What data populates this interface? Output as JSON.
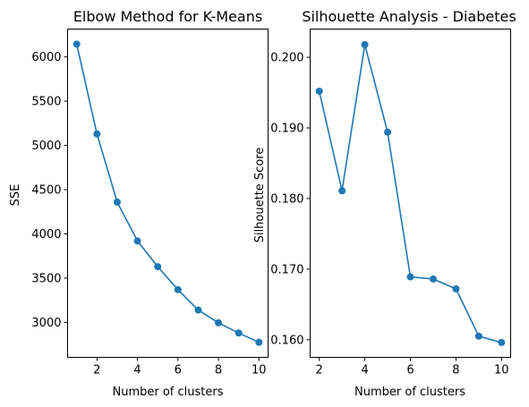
{
  "chart_data": [
    {
      "type": "line",
      "title": "Elbow Method for K-Means",
      "xlabel": "Number of clusters",
      "ylabel": "SSE",
      "x": [
        1,
        2,
        3,
        4,
        5,
        6,
        7,
        8,
        9,
        10
      ],
      "series": [
        {
          "values": [
            6145,
            5130,
            4360,
            3920,
            3630,
            3370,
            3140,
            2995,
            2880,
            2775
          ]
        }
      ],
      "xlim": [
        0.55,
        10.45
      ],
      "ylim": [
        2605,
        6315
      ],
      "xticks": [
        2,
        4,
        6,
        8,
        10
      ],
      "yticks": [
        3000,
        3500,
        4000,
        4500,
        5000,
        5500,
        6000
      ],
      "xtick_labels": [
        "2",
        "4",
        "6",
        "8",
        "10"
      ],
      "ytick_labels": [
        "3000",
        "3500",
        "4000",
        "4500",
        "5000",
        "5500",
        "6000"
      ],
      "grid": false,
      "marker": "circle",
      "color": "#1f77b4"
    },
    {
      "type": "line",
      "title": "Silhouette Analysis - Diabetes",
      "xlabel": "Number of clusters",
      "ylabel": "Silhouette Score",
      "x": [
        2,
        3,
        4,
        5,
        6,
        7,
        8,
        9,
        10
      ],
      "series": [
        {
          "values": [
            0.1952,
            0.1811,
            0.2018,
            0.1894,
            0.1689,
            0.1686,
            0.1672,
            0.1605,
            0.1596
          ]
        }
      ],
      "xlim": [
        1.6,
        10.4
      ],
      "ylim": [
        0.1575,
        0.204
      ],
      "xticks": [
        2,
        4,
        6,
        8,
        10
      ],
      "yticks": [
        0.16,
        0.17,
        0.18,
        0.19,
        0.2
      ],
      "xtick_labels": [
        "2",
        "4",
        "6",
        "8",
        "10"
      ],
      "ytick_labels": [
        "0.160",
        "0.170",
        "0.180",
        "0.190",
        "0.200"
      ],
      "grid": false,
      "marker": "circle",
      "color": "#1f77b4"
    }
  ]
}
